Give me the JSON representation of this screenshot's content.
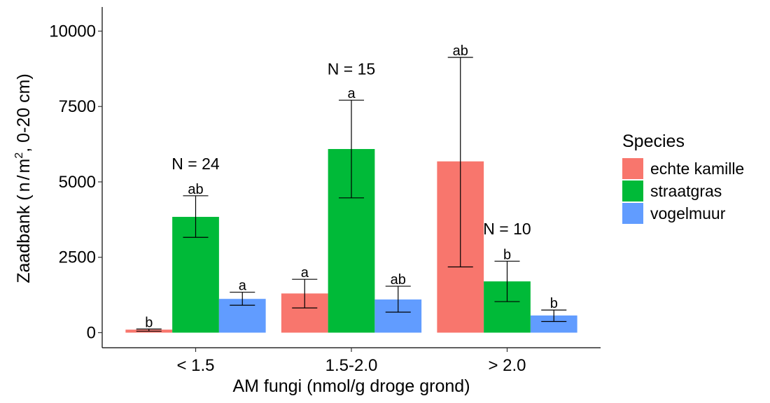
{
  "chart_data": {
    "type": "bar",
    "categories": [
      "< 1.5",
      "1.5-2.0",
      "> 2.0"
    ],
    "xlabel": "AM fungi (nmol/g droge grond)",
    "ylabel": {
      "prefix": "Zaadbank (",
      "unit_n": "n",
      "unit_slash": "/",
      "unit_m": "m",
      "unit_exp": "2",
      "suffix": ", 0-20 cm)"
    },
    "ylim": [
      -500,
      10800
    ],
    "yticks": [
      0,
      2500,
      5000,
      7500,
      10000
    ],
    "ytick_labels": [
      "0",
      "2500",
      "5000",
      "7500",
      "10000"
    ],
    "grid": false,
    "legend": {
      "title": "Species",
      "position": "right"
    },
    "series": [
      {
        "name": "echte kamille",
        "color": "#F8766D",
        "values": [
          100,
          1300,
          5680
        ],
        "error_low": [
          50,
          820,
          2180
        ],
        "error_high": [
          120,
          1770,
          9130
        ],
        "sig": [
          "b",
          "a",
          "ab"
        ]
      },
      {
        "name": "straatgras",
        "color": "#00BA38",
        "values": [
          3840,
          6090,
          1700
        ],
        "error_low": [
          3160,
          4470,
          1030
        ],
        "error_high": [
          4540,
          7710,
          2370
        ],
        "sig": [
          "ab",
          "a",
          "b"
        ]
      },
      {
        "name": "vogelmuur",
        "color": "#619CFF",
        "values": [
          1120,
          1100,
          570
        ],
        "error_low": [
          910,
          680,
          370
        ],
        "error_high": [
          1340,
          1540,
          750
        ],
        "sig": [
          "a",
          "ab",
          "b"
        ]
      }
    ],
    "annotations": [
      {
        "text": "N = 24",
        "group": 0,
        "y": 5600
      },
      {
        "text": "N = 15",
        "group": 1,
        "y": 8750
      },
      {
        "text": "N = 10",
        "group": 2,
        "y": 3450
      }
    ]
  }
}
